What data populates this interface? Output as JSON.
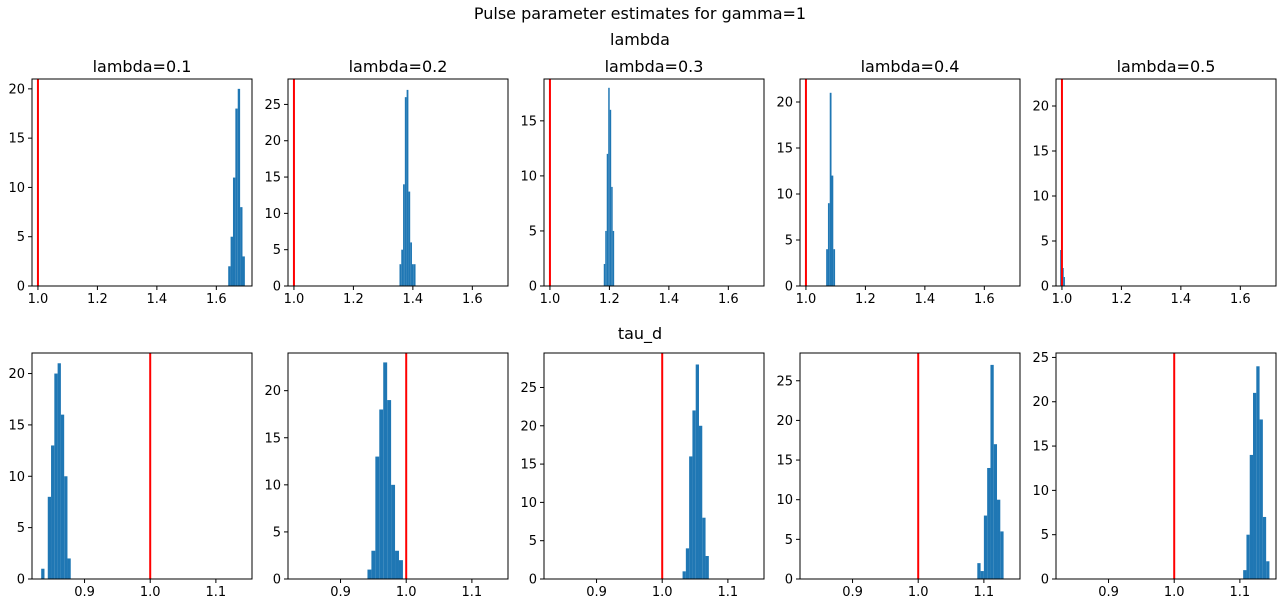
{
  "figure": {
    "suptitle": "Pulse parameter estimates for gamma=1",
    "row_titles": [
      "lambda",
      "tau_d"
    ]
  },
  "colors": {
    "bar": "#1f77b4",
    "ref_line": "#ff0000"
  },
  "chart_data": [
    {
      "type": "histogram",
      "row": "lambda",
      "title": "lambda=0.1",
      "xlim": [
        0.98,
        1.72
      ],
      "ylim": [
        0,
        21
      ],
      "xticks": [
        1.0,
        1.2,
        1.4,
        1.6
      ],
      "yticks": [
        0,
        5,
        10,
        15,
        20
      ],
      "ref_line_x": 1.0,
      "bins": [
        {
          "x0": 1.64,
          "x1": 1.648,
          "count": 2
        },
        {
          "x0": 1.648,
          "x1": 1.656,
          "count": 5
        },
        {
          "x0": 1.656,
          "x1": 1.664,
          "count": 11
        },
        {
          "x0": 1.664,
          "x1": 1.672,
          "count": 18
        },
        {
          "x0": 1.672,
          "x1": 1.68,
          "count": 20
        },
        {
          "x0": 1.68,
          "x1": 1.688,
          "count": 8
        },
        {
          "x0": 1.688,
          "x1": 1.696,
          "count": 3
        }
      ]
    },
    {
      "type": "histogram",
      "row": "lambda",
      "title": "lambda=0.2",
      "xlim": [
        0.98,
        1.72
      ],
      "ylim": [
        0,
        28.5
      ],
      "xticks": [
        1.0,
        1.2,
        1.4,
        1.6
      ],
      "yticks": [
        0,
        5,
        10,
        15,
        20,
        25
      ],
      "ref_line_x": 1.0,
      "bins": [
        {
          "x0": 1.355,
          "x1": 1.361,
          "count": 3
        },
        {
          "x0": 1.361,
          "x1": 1.367,
          "count": 5
        },
        {
          "x0": 1.367,
          "x1": 1.373,
          "count": 14
        },
        {
          "x0": 1.373,
          "x1": 1.379,
          "count": 26
        },
        {
          "x0": 1.379,
          "x1": 1.385,
          "count": 27
        },
        {
          "x0": 1.385,
          "x1": 1.391,
          "count": 13
        },
        {
          "x0": 1.391,
          "x1": 1.397,
          "count": 6
        },
        {
          "x0": 1.397,
          "x1": 1.403,
          "count": 3
        },
        {
          "x0": 1.403,
          "x1": 1.409,
          "count": 3
        }
      ]
    },
    {
      "type": "histogram",
      "row": "lambda",
      "title": "lambda=0.3",
      "xlim": [
        0.98,
        1.72
      ],
      "ylim": [
        0,
        18.8
      ],
      "xticks": [
        1.0,
        1.2,
        1.4,
        1.6
      ],
      "yticks": [
        0,
        5,
        10,
        15
      ],
      "ref_line_x": 1.0,
      "bins": [
        {
          "x0": 1.181,
          "x1": 1.186,
          "count": 2
        },
        {
          "x0": 1.186,
          "x1": 1.191,
          "count": 5
        },
        {
          "x0": 1.191,
          "x1": 1.196,
          "count": 12
        },
        {
          "x0": 1.196,
          "x1": 1.201,
          "count": 18
        },
        {
          "x0": 1.201,
          "x1": 1.206,
          "count": 16
        },
        {
          "x0": 1.206,
          "x1": 1.211,
          "count": 9
        },
        {
          "x0": 1.211,
          "x1": 1.216,
          "count": 5
        }
      ]
    },
    {
      "type": "histogram",
      "row": "lambda",
      "title": "lambda=0.4",
      "xlim": [
        0.98,
        1.72
      ],
      "ylim": [
        0,
        22.5
      ],
      "xticks": [
        1.0,
        1.2,
        1.4,
        1.6
      ],
      "yticks": [
        0,
        5,
        10,
        15,
        20
      ],
      "ref_line_x": 1.0,
      "bins": [
        {
          "x0": 1.068,
          "x1": 1.074,
          "count": 4
        },
        {
          "x0": 1.074,
          "x1": 1.08,
          "count": 9
        },
        {
          "x0": 1.08,
          "x1": 1.086,
          "count": 21
        },
        {
          "x0": 1.086,
          "x1": 1.092,
          "count": 12
        },
        {
          "x0": 1.092,
          "x1": 1.098,
          "count": 4
        }
      ]
    },
    {
      "type": "histogram",
      "row": "lambda",
      "title": "lambda=0.5",
      "xlim": [
        0.98,
        1.72
      ],
      "ylim": [
        0,
        23
      ],
      "xticks": [
        1.0,
        1.2,
        1.4,
        1.6
      ],
      "yticks": [
        0,
        5,
        10,
        15,
        20
      ],
      "ref_line_x": 1.0,
      "bins": [
        {
          "x0": 0.994,
          "x1": 0.998,
          "count": 4
        },
        {
          "x0": 0.998,
          "x1": 1.002,
          "count": 6
        },
        {
          "x0": 1.002,
          "x1": 1.006,
          "count": 2
        },
        {
          "x0": 1.006,
          "x1": 1.01,
          "count": 1
        }
      ]
    },
    {
      "type": "histogram",
      "row": "tau_d",
      "title": "",
      "xlim": [
        0.82,
        1.155
      ],
      "ylim": [
        0,
        22
      ],
      "xticks": [
        0.9,
        1.0,
        1.1
      ],
      "yticks": [
        0,
        5,
        10,
        15,
        20
      ],
      "ref_line_x": 1.0,
      "bins": [
        {
          "x0": 0.834,
          "x1": 0.839,
          "count": 1
        },
        {
          "x0": 0.839,
          "x1": 0.844,
          "count": 0
        },
        {
          "x0": 0.844,
          "x1": 0.849,
          "count": 8
        },
        {
          "x0": 0.849,
          "x1": 0.854,
          "count": 13
        },
        {
          "x0": 0.854,
          "x1": 0.859,
          "count": 20
        },
        {
          "x0": 0.859,
          "x1": 0.864,
          "count": 21
        },
        {
          "x0": 0.864,
          "x1": 0.869,
          "count": 16
        },
        {
          "x0": 0.869,
          "x1": 0.874,
          "count": 10
        },
        {
          "x0": 0.874,
          "x1": 0.879,
          "count": 2
        }
      ]
    },
    {
      "type": "histogram",
      "row": "tau_d",
      "title": "",
      "xlim": [
        0.82,
        1.155
      ],
      "ylim": [
        0,
        24
      ],
      "xticks": [
        0.9,
        1.0,
        1.1
      ],
      "yticks": [
        0,
        5,
        10,
        15,
        20
      ],
      "ref_line_x": 1.0,
      "bins": [
        {
          "x0": 0.941,
          "x1": 0.947,
          "count": 1
        },
        {
          "x0": 0.947,
          "x1": 0.953,
          "count": 3
        },
        {
          "x0": 0.953,
          "x1": 0.959,
          "count": 13
        },
        {
          "x0": 0.959,
          "x1": 0.965,
          "count": 18
        },
        {
          "x0": 0.965,
          "x1": 0.971,
          "count": 23
        },
        {
          "x0": 0.971,
          "x1": 0.977,
          "count": 19
        },
        {
          "x0": 0.977,
          "x1": 0.983,
          "count": 10
        },
        {
          "x0": 0.983,
          "x1": 0.989,
          "count": 3
        },
        {
          "x0": 0.989,
          "x1": 0.995,
          "count": 2
        }
      ]
    },
    {
      "type": "histogram",
      "row": "tau_d",
      "title": "",
      "xlim": [
        0.82,
        1.155
      ],
      "ylim": [
        0,
        29.5
      ],
      "xticks": [
        0.9,
        1.0,
        1.1
      ],
      "yticks": [
        0,
        5,
        10,
        15,
        20,
        25
      ],
      "ref_line_x": 1.0,
      "bins": [
        {
          "x0": 1.031,
          "x1": 1.036,
          "count": 1
        },
        {
          "x0": 1.036,
          "x1": 1.041,
          "count": 4
        },
        {
          "x0": 1.041,
          "x1": 1.046,
          "count": 16
        },
        {
          "x0": 1.046,
          "x1": 1.051,
          "count": 22
        },
        {
          "x0": 1.051,
          "x1": 1.056,
          "count": 28
        },
        {
          "x0": 1.056,
          "x1": 1.061,
          "count": 20
        },
        {
          "x0": 1.061,
          "x1": 1.066,
          "count": 8
        },
        {
          "x0": 1.066,
          "x1": 1.071,
          "count": 3
        }
      ]
    },
    {
      "type": "histogram",
      "row": "tau_d",
      "title": "",
      "xlim": [
        0.82,
        1.155
      ],
      "ylim": [
        0,
        28.5
      ],
      "xticks": [
        0.9,
        1.0,
        1.1
      ],
      "yticks": [
        0,
        5,
        10,
        15,
        20,
        25
      ],
      "ref_line_x": 1.0,
      "bins": [
        {
          "x0": 1.09,
          "x1": 1.095,
          "count": 2
        },
        {
          "x0": 1.095,
          "x1": 1.1,
          "count": 1
        },
        {
          "x0": 1.1,
          "x1": 1.105,
          "count": 8
        },
        {
          "x0": 1.105,
          "x1": 1.11,
          "count": 14
        },
        {
          "x0": 1.11,
          "x1": 1.115,
          "count": 27
        },
        {
          "x0": 1.115,
          "x1": 1.12,
          "count": 17
        },
        {
          "x0": 1.12,
          "x1": 1.125,
          "count": 10
        },
        {
          "x0": 1.125,
          "x1": 1.13,
          "count": 6
        }
      ]
    },
    {
      "type": "histogram",
      "row": "tau_d",
      "title": "",
      "xlim": [
        0.82,
        1.155
      ],
      "ylim": [
        0,
        25.5
      ],
      "xticks": [
        0.9,
        1.0,
        1.1
      ],
      "yticks": [
        0,
        5,
        10,
        15,
        20,
        25
      ],
      "ref_line_x": 1.0,
      "bins": [
        {
          "x0": 1.105,
          "x1": 1.11,
          "count": 1
        },
        {
          "x0": 1.11,
          "x1": 1.115,
          "count": 5
        },
        {
          "x0": 1.115,
          "x1": 1.12,
          "count": 14
        },
        {
          "x0": 1.12,
          "x1": 1.125,
          "count": 21
        },
        {
          "x0": 1.125,
          "x1": 1.13,
          "count": 24
        },
        {
          "x0": 1.13,
          "x1": 1.135,
          "count": 18
        },
        {
          "x0": 1.135,
          "x1": 1.14,
          "count": 7
        },
        {
          "x0": 1.14,
          "x1": 1.145,
          "count": 2
        }
      ]
    }
  ]
}
